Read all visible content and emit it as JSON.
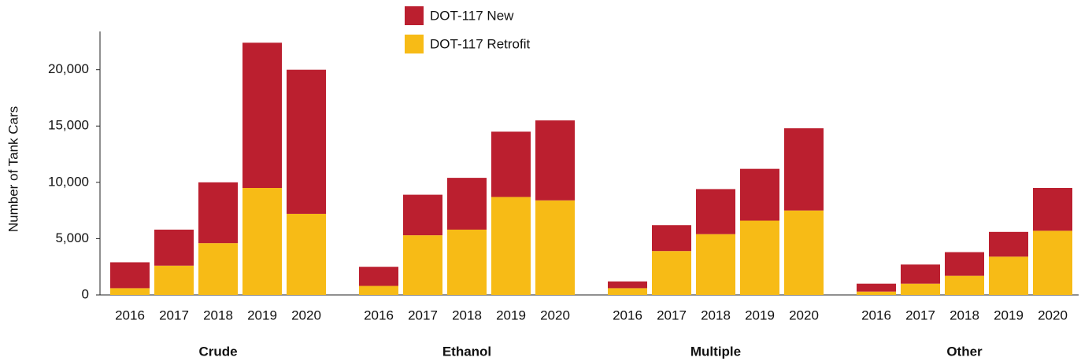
{
  "chart_data": {
    "type": "stacked-bar",
    "y_label": "Number of Tank Cars",
    "groups": [
      "Crude",
      "Ethanol",
      "Multiple",
      "Other"
    ],
    "categories": [
      "2016",
      "2017",
      "2018",
      "2019",
      "2020",
      "2016",
      "2017",
      "2018",
      "2019",
      "2020",
      "2016",
      "2017",
      "2018",
      "2019",
      "2020",
      "2016",
      "2017",
      "2018",
      "2019",
      "2020"
    ],
    "series": [
      {
        "name": "DOT-117 Retrofit",
        "color": "#f7bb16",
        "values": [
          600,
          2600,
          4600,
          9500,
          7200,
          800,
          5300,
          5800,
          8700,
          8400,
          600,
          3900,
          5400,
          6600,
          7500,
          300,
          1000,
          1700,
          3400,
          5700
        ]
      },
      {
        "name": "DOT-117 New",
        "color": "#bb1f2f",
        "values": [
          2300,
          3200,
          5400,
          12900,
          12800,
          1700,
          3600,
          4600,
          5800,
          7100,
          600,
          2300,
          4000,
          4600,
          7300,
          700,
          1700,
          2100,
          2200,
          3800
        ]
      }
    ],
    "ylim": [
      0,
      23400
    ],
    "yticks": [
      0,
      {
        "value": 5000,
        "label": "5,000"
      },
      {
        "value": 10000,
        "label": "10,000"
      },
      {
        "value": 15000,
        "label": "15,000"
      },
      {
        "value": 20000,
        "label": "20,000"
      }
    ],
    "legend": "top-center"
  }
}
